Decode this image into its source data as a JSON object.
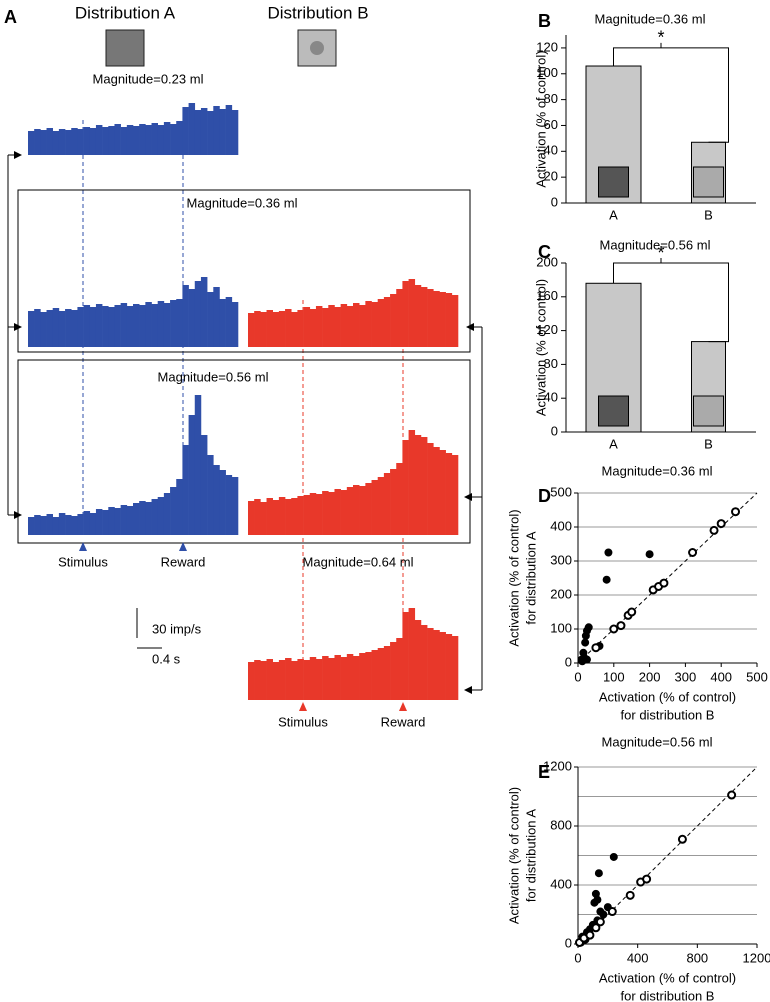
{
  "panel_labels": [
    "A",
    "B",
    "C",
    "D",
    "E"
  ],
  "distributions": [
    {
      "label": "Distribution A",
      "color": "#2f4fa8"
    },
    {
      "label": "Distribution B",
      "color": "#e8382a"
    }
  ],
  "scale_bar": {
    "y": {
      "value": 30,
      "label": "30 imp/s"
    },
    "x": {
      "value": 0.4,
      "label": "0.4 s"
    }
  },
  "chart_data": [
    {
      "type": "psth",
      "title": "Magnitude=0.23 ml",
      "xlim": [
        0,
        3.36
      ],
      "series": [
        {
          "color": "#2f4fa8",
          "values": [
            24,
            26,
            25,
            27,
            24,
            26,
            25,
            27,
            26,
            28,
            27,
            30,
            28,
            29,
            31,
            28,
            30,
            29,
            31,
            30,
            32,
            30,
            33,
            31,
            34,
            48,
            52,
            45,
            47,
            44,
            49,
            46,
            50,
            45
          ]
        }
      ]
    },
    {
      "type": "psth",
      "title": "Magnitude=0.36 ml",
      "xlim": [
        0,
        3.36
      ],
      "series": [
        {
          "color": "#2f4fa8",
          "values": [
            36,
            38,
            35,
            37,
            39,
            36,
            38,
            37,
            40,
            42,
            40,
            43,
            41,
            40,
            42,
            44,
            41,
            43,
            42,
            45,
            43,
            46,
            44,
            47,
            48,
            62,
            58,
            66,
            70,
            55,
            60,
            48,
            50,
            45
          ]
        },
        {
          "color": "#e8382a",
          "values": [
            34,
            36,
            35,
            37,
            35,
            36,
            38,
            35,
            37,
            40,
            38,
            41,
            39,
            42,
            40,
            43,
            41,
            44,
            42,
            46,
            45,
            48,
            50,
            53,
            58,
            66,
            68,
            62,
            60,
            58,
            56,
            55,
            54,
            52
          ]
        }
      ]
    },
    {
      "type": "psth",
      "title": "Magnitude=0.56 ml",
      "xlim": [
        0,
        3.36
      ],
      "series": [
        {
          "color": "#2f4fa8",
          "values": [
            18,
            20,
            19,
            21,
            18,
            22,
            20,
            19,
            21,
            24,
            22,
            26,
            25,
            28,
            27,
            30,
            29,
            32,
            34,
            33,
            36,
            38,
            42,
            48,
            56,
            90,
            120,
            140,
            100,
            80,
            70,
            65,
            60,
            58
          ]
        },
        {
          "color": "#e8382a",
          "values": [
            34,
            36,
            33,
            37,
            35,
            38,
            36,
            37,
            39,
            40,
            42,
            41,
            44,
            43,
            46,
            45,
            48,
            50,
            49,
            52,
            55,
            58,
            62,
            66,
            72,
            95,
            105,
            100,
            98,
            92,
            88,
            85,
            82,
            80
          ]
        }
      ],
      "events": [
        {
          "label": "Stimulus",
          "x": 0.88
        },
        {
          "label": "Reward",
          "x": 2.48
        }
      ]
    },
    {
      "type": "psth",
      "title": "Magnitude=0.64 ml",
      "xlim": [
        0,
        3.36
      ],
      "series": [
        {
          "color": "#e8382a",
          "values": [
            38,
            40,
            39,
            41,
            38,
            40,
            42,
            39,
            41,
            40,
            43,
            41,
            44,
            42,
            45,
            43,
            46,
            44,
            47,
            48,
            50,
            52,
            54,
            58,
            62,
            88,
            92,
            80,
            75,
            72,
            70,
            68,
            66,
            64
          ]
        }
      ],
      "events": [
        {
          "label": "Stimulus",
          "x": 0.88
        },
        {
          "label": "Reward",
          "x": 2.48
        }
      ]
    },
    {
      "type": "bar",
      "title": "Magnitude=0.36 ml",
      "ylabel": "Activation (% of control)",
      "categories": [
        "A",
        "B"
      ],
      "values": [
        106,
        47
      ],
      "color": "#c8c8c8",
      "ylim": [
        0,
        130
      ],
      "yticks": [
        0,
        20,
        40,
        60,
        80,
        100,
        120
      ],
      "annotation": "*"
    },
    {
      "type": "bar",
      "title": "Magnitude=0.56 ml",
      "ylabel": "Activation (% of control)",
      "categories": [
        "A",
        "B"
      ],
      "values": [
        176,
        107
      ],
      "color": "#c8c8c8",
      "ylim": [
        0,
        200
      ],
      "yticks": [
        0,
        40,
        80,
        120,
        160,
        200
      ],
      "annotation": "*"
    },
    {
      "type": "scatter",
      "title": "Magnitude=0.36 ml",
      "xlabel": [
        "Activation (% of control)",
        "for distribution B"
      ],
      "ylabel": [
        "Activation (% of control)",
        "for distribution A"
      ],
      "xlim": [
        0,
        500
      ],
      "ylim": [
        0,
        500
      ],
      "xticks": [
        0,
        100,
        200,
        300,
        400,
        500
      ],
      "yticks": [
        0,
        100,
        200,
        300,
        400,
        500
      ],
      "gridlines": [
        100,
        200,
        300,
        400,
        500
      ],
      "diagonal": true,
      "series": [
        {
          "color": "#000000",
          "filled": true,
          "x": [
            10,
            15,
            20,
            22,
            25,
            30,
            18,
            60,
            80,
            85,
            200,
            12,
            25
          ],
          "y": [
            10,
            30,
            60,
            80,
            95,
            105,
            15,
            50,
            245,
            325,
            320,
            5,
            10
          ]
        },
        {
          "color": "#000000",
          "filled": false,
          "x": [
            50,
            100,
            120,
            140,
            150,
            210,
            225,
            240,
            320,
            380,
            400,
            440
          ],
          "y": [
            45,
            100,
            110,
            140,
            150,
            215,
            225,
            235,
            325,
            390,
            410,
            445
          ]
        }
      ]
    },
    {
      "type": "scatter",
      "title": "Magnitude=0.56 ml",
      "xlabel": [
        "Activation (% of control)",
        "for distribution B"
      ],
      "ylabel": [
        "Activation (% of control)",
        "for distribution A"
      ],
      "xlim": [
        0,
        1200
      ],
      "ylim": [
        0,
        1200
      ],
      "xticks": [
        0,
        400,
        800,
        1200
      ],
      "yticks": [
        0,
        400,
        800,
        1200
      ],
      "gridlines": [
        200,
        400,
        600,
        800,
        1000,
        1200
      ],
      "diagonal": true,
      "series": [
        {
          "color": "#000000",
          "filled": true,
          "x": [
            30,
            60,
            100,
            110,
            120,
            130,
            140,
            150,
            170,
            200,
            240,
            80,
            50,
            20,
            130
          ],
          "y": [
            50,
            80,
            130,
            280,
            340,
            300,
            480,
            220,
            200,
            250,
            590,
            100,
            30,
            10,
            160
          ]
        },
        {
          "color": "#000000",
          "filled": false,
          "x": [
            10,
            40,
            80,
            120,
            150,
            230,
            350,
            420,
            460,
            700,
            1030
          ],
          "y": [
            10,
            40,
            60,
            110,
            150,
            220,
            330,
            420,
            440,
            710,
            1010
          ]
        }
      ]
    }
  ]
}
